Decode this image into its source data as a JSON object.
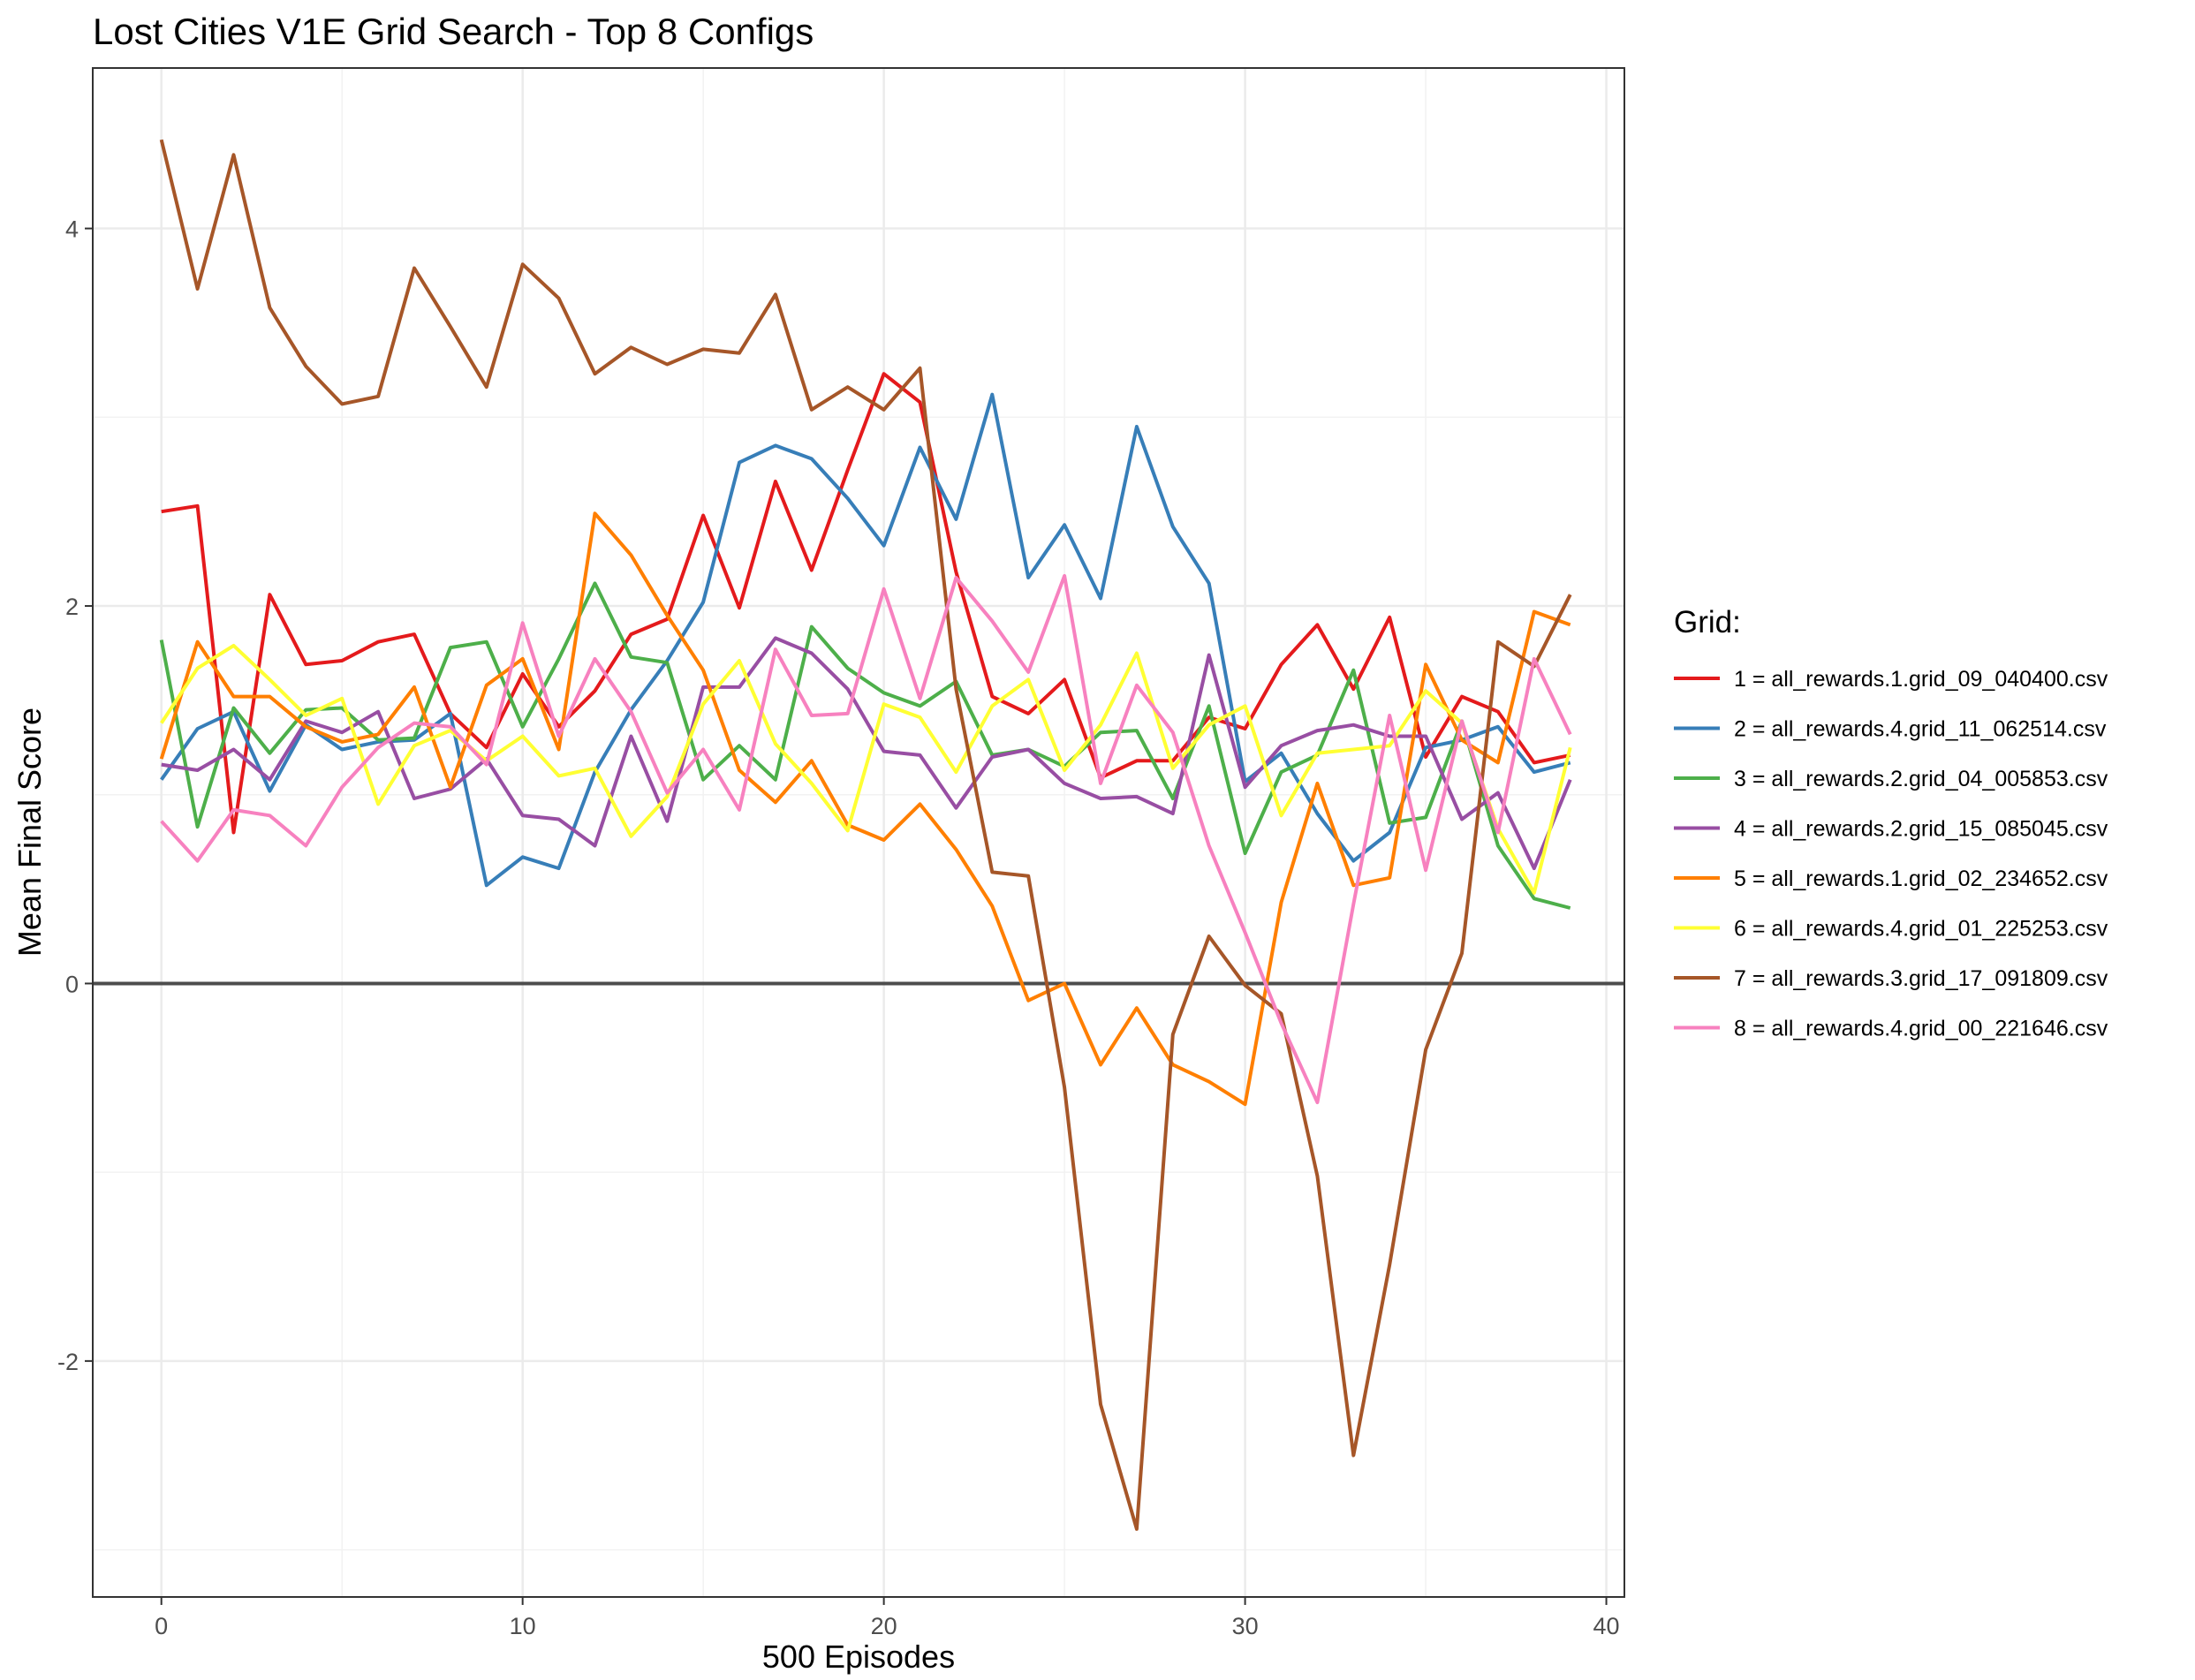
{
  "chart_data": {
    "type": "line",
    "title": "Lost Cities V1E Grid Search - Top 8 Configs",
    "xlabel": "500 Episodes",
    "ylabel": "Mean Final Score",
    "xlim": [
      -1.9,
      40.5
    ],
    "ylim": [
      -3.25,
      4.85
    ],
    "x_ticks": [
      0,
      10,
      20,
      30,
      40
    ],
    "x_tick_labels": [
      "0",
      "10",
      "20",
      "30",
      "40"
    ],
    "y_ticks": [
      -2,
      0,
      2,
      4
    ],
    "y_tick_labels": [
      "-2",
      "0",
      "2",
      "4"
    ],
    "grid": true,
    "reference_line_y": 0,
    "legend": {
      "title": "Grid:",
      "position": "right"
    },
    "x": [
      0,
      1,
      2,
      3,
      4,
      5,
      6,
      7,
      8,
      9,
      10,
      11,
      12,
      13,
      14,
      15,
      16,
      17,
      18,
      19,
      20,
      21,
      22,
      23,
      24,
      25,
      26,
      27,
      28,
      29,
      30,
      31,
      32,
      33,
      34,
      35,
      36,
      37,
      38,
      39
    ],
    "series": [
      {
        "name": "1 = all_rewards.1.grid_09_040400.csv",
        "color": "#e41a1c",
        "values": [
          2.5,
          2.53,
          0.8,
          2.06,
          1.69,
          1.71,
          1.81,
          1.85,
          1.43,
          1.25,
          1.64,
          1.36,
          1.55,
          1.85,
          1.93,
          2.48,
          1.99,
          2.66,
          2.19,
          2.72,
          3.23,
          3.08,
          2.18,
          1.52,
          1.43,
          1.61,
          1.09,
          1.18,
          1.18,
          1.41,
          1.35,
          1.69,
          1.9,
          1.56,
          1.94,
          1.2,
          1.52,
          1.44,
          1.17,
          1.21
        ]
      },
      {
        "name": "2 = all_rewards.4.grid_11_062514.csv",
        "color": "#377eb8",
        "values": [
          1.08,
          1.35,
          1.44,
          1.02,
          1.37,
          1.24,
          1.28,
          1.29,
          1.43,
          0.52,
          0.67,
          0.61,
          1.12,
          1.45,
          1.71,
          2.02,
          2.76,
          2.85,
          2.78,
          2.57,
          2.32,
          2.84,
          2.46,
          3.12,
          2.15,
          2.43,
          2.04,
          2.95,
          2.42,
          2.12,
          1.07,
          1.22,
          0.9,
          0.65,
          0.8,
          1.25,
          1.29,
          1.36,
          1.12,
          1.17
        ]
      },
      {
        "name": "3 = all_rewards.2.grid_04_005853.csv",
        "color": "#4daf4a",
        "values": [
          1.82,
          0.83,
          1.46,
          1.22,
          1.45,
          1.46,
          1.29,
          1.3,
          1.78,
          1.81,
          1.36,
          1.72,
          2.12,
          1.73,
          1.7,
          1.08,
          1.26,
          1.08,
          1.89,
          1.67,
          1.54,
          1.47,
          1.6,
          1.21,
          1.24,
          1.15,
          1.33,
          1.34,
          0.98,
          1.47,
          0.69,
          1.12,
          1.21,
          1.66,
          0.85,
          0.88,
          1.39,
          0.73,
          0.45,
          0.4
        ]
      },
      {
        "name": "4 = all_rewards.2.grid_15_085045.csv",
        "color": "#984ea3",
        "values": [
          1.16,
          1.13,
          1.24,
          1.08,
          1.39,
          1.33,
          1.44,
          0.98,
          1.03,
          1.19,
          0.89,
          0.87,
          0.73,
          1.31,
          0.86,
          1.57,
          1.57,
          1.83,
          1.75,
          1.56,
          1.23,
          1.21,
          0.93,
          1.2,
          1.24,
          1.06,
          0.98,
          0.99,
          0.9,
          1.74,
          1.04,
          1.26,
          1.34,
          1.37,
          1.31,
          1.31,
          0.87,
          1.01,
          0.61,
          1.08
        ]
      },
      {
        "name": "5 = all_rewards.1.grid_02_234652.csv",
        "color": "#ff7f00",
        "values": [
          1.19,
          1.81,
          1.52,
          1.52,
          1.36,
          1.28,
          1.32,
          1.57,
          1.04,
          1.58,
          1.72,
          1.24,
          2.49,
          2.27,
          1.95,
          1.66,
          1.13,
          0.96,
          1.18,
          0.84,
          0.76,
          0.95,
          0.71,
          0.41,
          -0.09,
          0.0,
          -0.43,
          -0.13,
          -0.43,
          -0.52,
          -0.64,
          0.43,
          1.06,
          0.52,
          0.56,
          1.69,
          1.29,
          1.17,
          1.97,
          1.9
        ]
      },
      {
        "name": "6 = all_rewards.4.grid_01_225253.csv",
        "color": "#ffff33",
        "values": [
          1.38,
          1.67,
          1.79,
          1.61,
          1.42,
          1.51,
          0.95,
          1.26,
          1.34,
          1.18,
          1.31,
          1.1,
          1.14,
          0.78,
          0.99,
          1.48,
          1.71,
          1.27,
          1.06,
          0.81,
          1.48,
          1.41,
          1.12,
          1.47,
          1.61,
          1.13,
          1.37,
          1.75,
          1.14,
          1.37,
          1.47,
          0.89,
          1.22,
          1.24,
          1.26,
          1.55,
          1.38,
          0.82,
          0.48,
          1.25
        ]
      },
      {
        "name": "7 = all_rewards.3.grid_17_091809.csv",
        "color": "#a65628",
        "values": [
          4.47,
          3.68,
          4.39,
          3.58,
          3.27,
          3.07,
          3.11,
          3.79,
          3.48,
          3.16,
          3.81,
          3.63,
          3.23,
          3.37,
          3.28,
          3.36,
          3.34,
          3.65,
          3.04,
          3.16,
          3.04,
          3.26,
          1.56,
          0.59,
          0.57,
          -0.55,
          -2.23,
          -2.89,
          -0.27,
          0.25,
          -0.01,
          -0.16,
          -1.02,
          -2.5,
          -1.49,
          -0.35,
          0.16,
          1.81,
          1.68,
          2.06
        ]
      },
      {
        "name": "8 = all_rewards.4.grid_00_221646.csv",
        "color": "#f781bf",
        "values": [
          0.86,
          0.65,
          0.92,
          0.89,
          0.73,
          1.04,
          1.25,
          1.38,
          1.36,
          1.16,
          1.91,
          1.31,
          1.72,
          1.44,
          1.01,
          1.24,
          0.92,
          1.77,
          1.42,
          1.43,
          2.09,
          1.51,
          2.15,
          1.92,
          1.65,
          2.16,
          1.06,
          1.58,
          1.33,
          0.73,
          0.27,
          -0.21,
          -0.63,
          0.42,
          1.42,
          0.6,
          1.39,
          0.8,
          1.72,
          1.32
        ]
      }
    ]
  }
}
